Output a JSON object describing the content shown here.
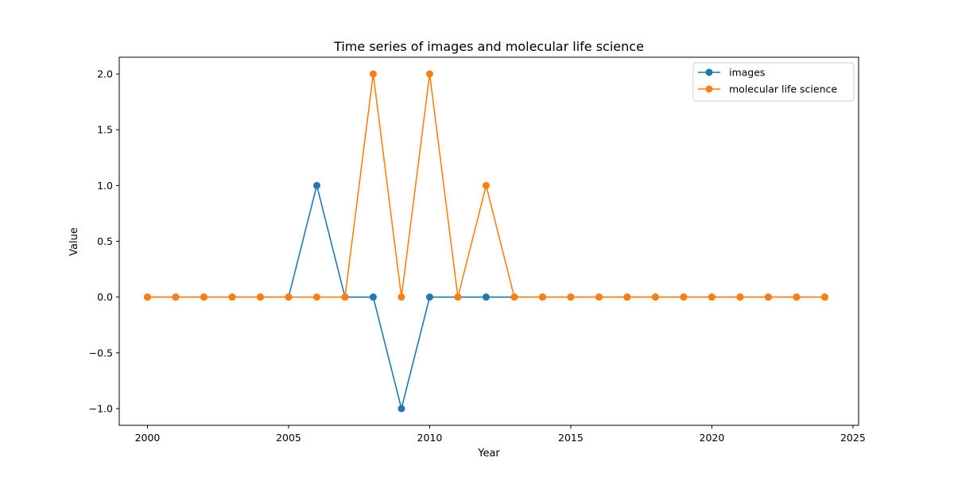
{
  "chart_data": {
    "type": "line",
    "title": "Time series of images and molecular life science",
    "xlabel": "Year",
    "ylabel": "Value",
    "xlim": [
      1999.0,
      2025.2
    ],
    "ylim": [
      -1.15,
      2.15
    ],
    "xticks": [
      2000,
      2005,
      2010,
      2015,
      2020,
      2025
    ],
    "xtick_labels": [
      "2000",
      "2005",
      "2010",
      "2015",
      "2020",
      "2025"
    ],
    "yticks": [
      -1.0,
      -0.5,
      0.0,
      0.5,
      1.0,
      1.5,
      2.0
    ],
    "ytick_labels": [
      "−1.0",
      "−0.5",
      "0.0",
      "0.5",
      "1.0",
      "1.5",
      "2.0"
    ],
    "grid": false,
    "legend_position": "top-right",
    "x": [
      2000,
      2001,
      2002,
      2003,
      2004,
      2005,
      2006,
      2007,
      2008,
      2009,
      2010,
      2011,
      2012,
      2013,
      2014,
      2015,
      2016,
      2017,
      2018,
      2019,
      2020,
      2021,
      2022,
      2023,
      2024
    ],
    "series": [
      {
        "name": "images",
        "color": "#1f77b4",
        "values": [
          0,
          0,
          0,
          0,
          0,
          0,
          1,
          0,
          0,
          -1,
          0,
          0,
          0,
          0,
          0,
          0,
          0,
          0,
          0,
          0,
          0,
          0,
          0,
          0,
          0
        ]
      },
      {
        "name": "molecular life science",
        "color": "#ff7f0e",
        "values": [
          0,
          0,
          0,
          0,
          0,
          0,
          0,
          0,
          2,
          0,
          2,
          0,
          1,
          0,
          0,
          0,
          0,
          0,
          0,
          0,
          0,
          0,
          0,
          0,
          0
        ]
      }
    ]
  }
}
